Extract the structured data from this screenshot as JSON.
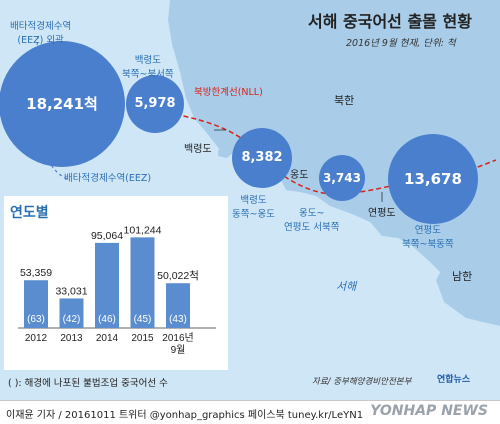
{
  "title": "서해 중국어선 출몰 현황",
  "subtitle": "2016년 9월 현재, 단위: 척",
  "regions": [
    {
      "label": "배타적경제수역\n(EEZ) 외곽",
      "value": "18,241척"
    },
    {
      "label": "백령도\n북쪽~북서쪽",
      "value": "5,978"
    },
    {
      "label": "백령도\n동쪽~옹도",
      "value": "8,382"
    },
    {
      "label": "옹도~\n연평도 서북쪽",
      "value": "3,743"
    },
    {
      "label": "연평도\n북쪽~북동쪽",
      "value": "13,678"
    }
  ],
  "places": {
    "nll": "북방한계선(NLL)",
    "north_korea": "북한",
    "south_korea": "남한",
    "west_sea": "서해",
    "baengnyeong": "백령도",
    "ongdo": "옹도",
    "yeonpyeong": "연평도",
    "eez_line": "배타적경제수역(EEZ)"
  },
  "chart_data": {
    "type": "bar",
    "title": "연도별",
    "categories": [
      "2012",
      "2013",
      "2014",
      "2015",
      "2016년\n9월"
    ],
    "values": [
      53359,
      33031,
      95064,
      101244,
      50022
    ],
    "value_labels": [
      "53,359",
      "33,031",
      "95,064",
      "101,244",
      "50,022척"
    ],
    "seized": [
      "(63)",
      "(42)",
      "(46)",
      "(45)",
      "(43)"
    ],
    "ylim": [
      0,
      105000
    ],
    "bar_color": "#5a8dd0"
  },
  "note": "( ): 해경에 나포된 불법조업 중국어선 수",
  "source": "자료/ 중부해양경비안전본부",
  "logo": "연합뉴스",
  "credit": "이재윤 기자 / 20161011   트위터 @yonhap_graphics  페이스북 tuney.kr/LeYN1",
  "watermark": "YONHAP NEWS",
  "colors": {
    "sea": "#cfe6f6",
    "land": "#a9cde8",
    "bubble": "#4a7fce",
    "nll": "#d9231a"
  }
}
